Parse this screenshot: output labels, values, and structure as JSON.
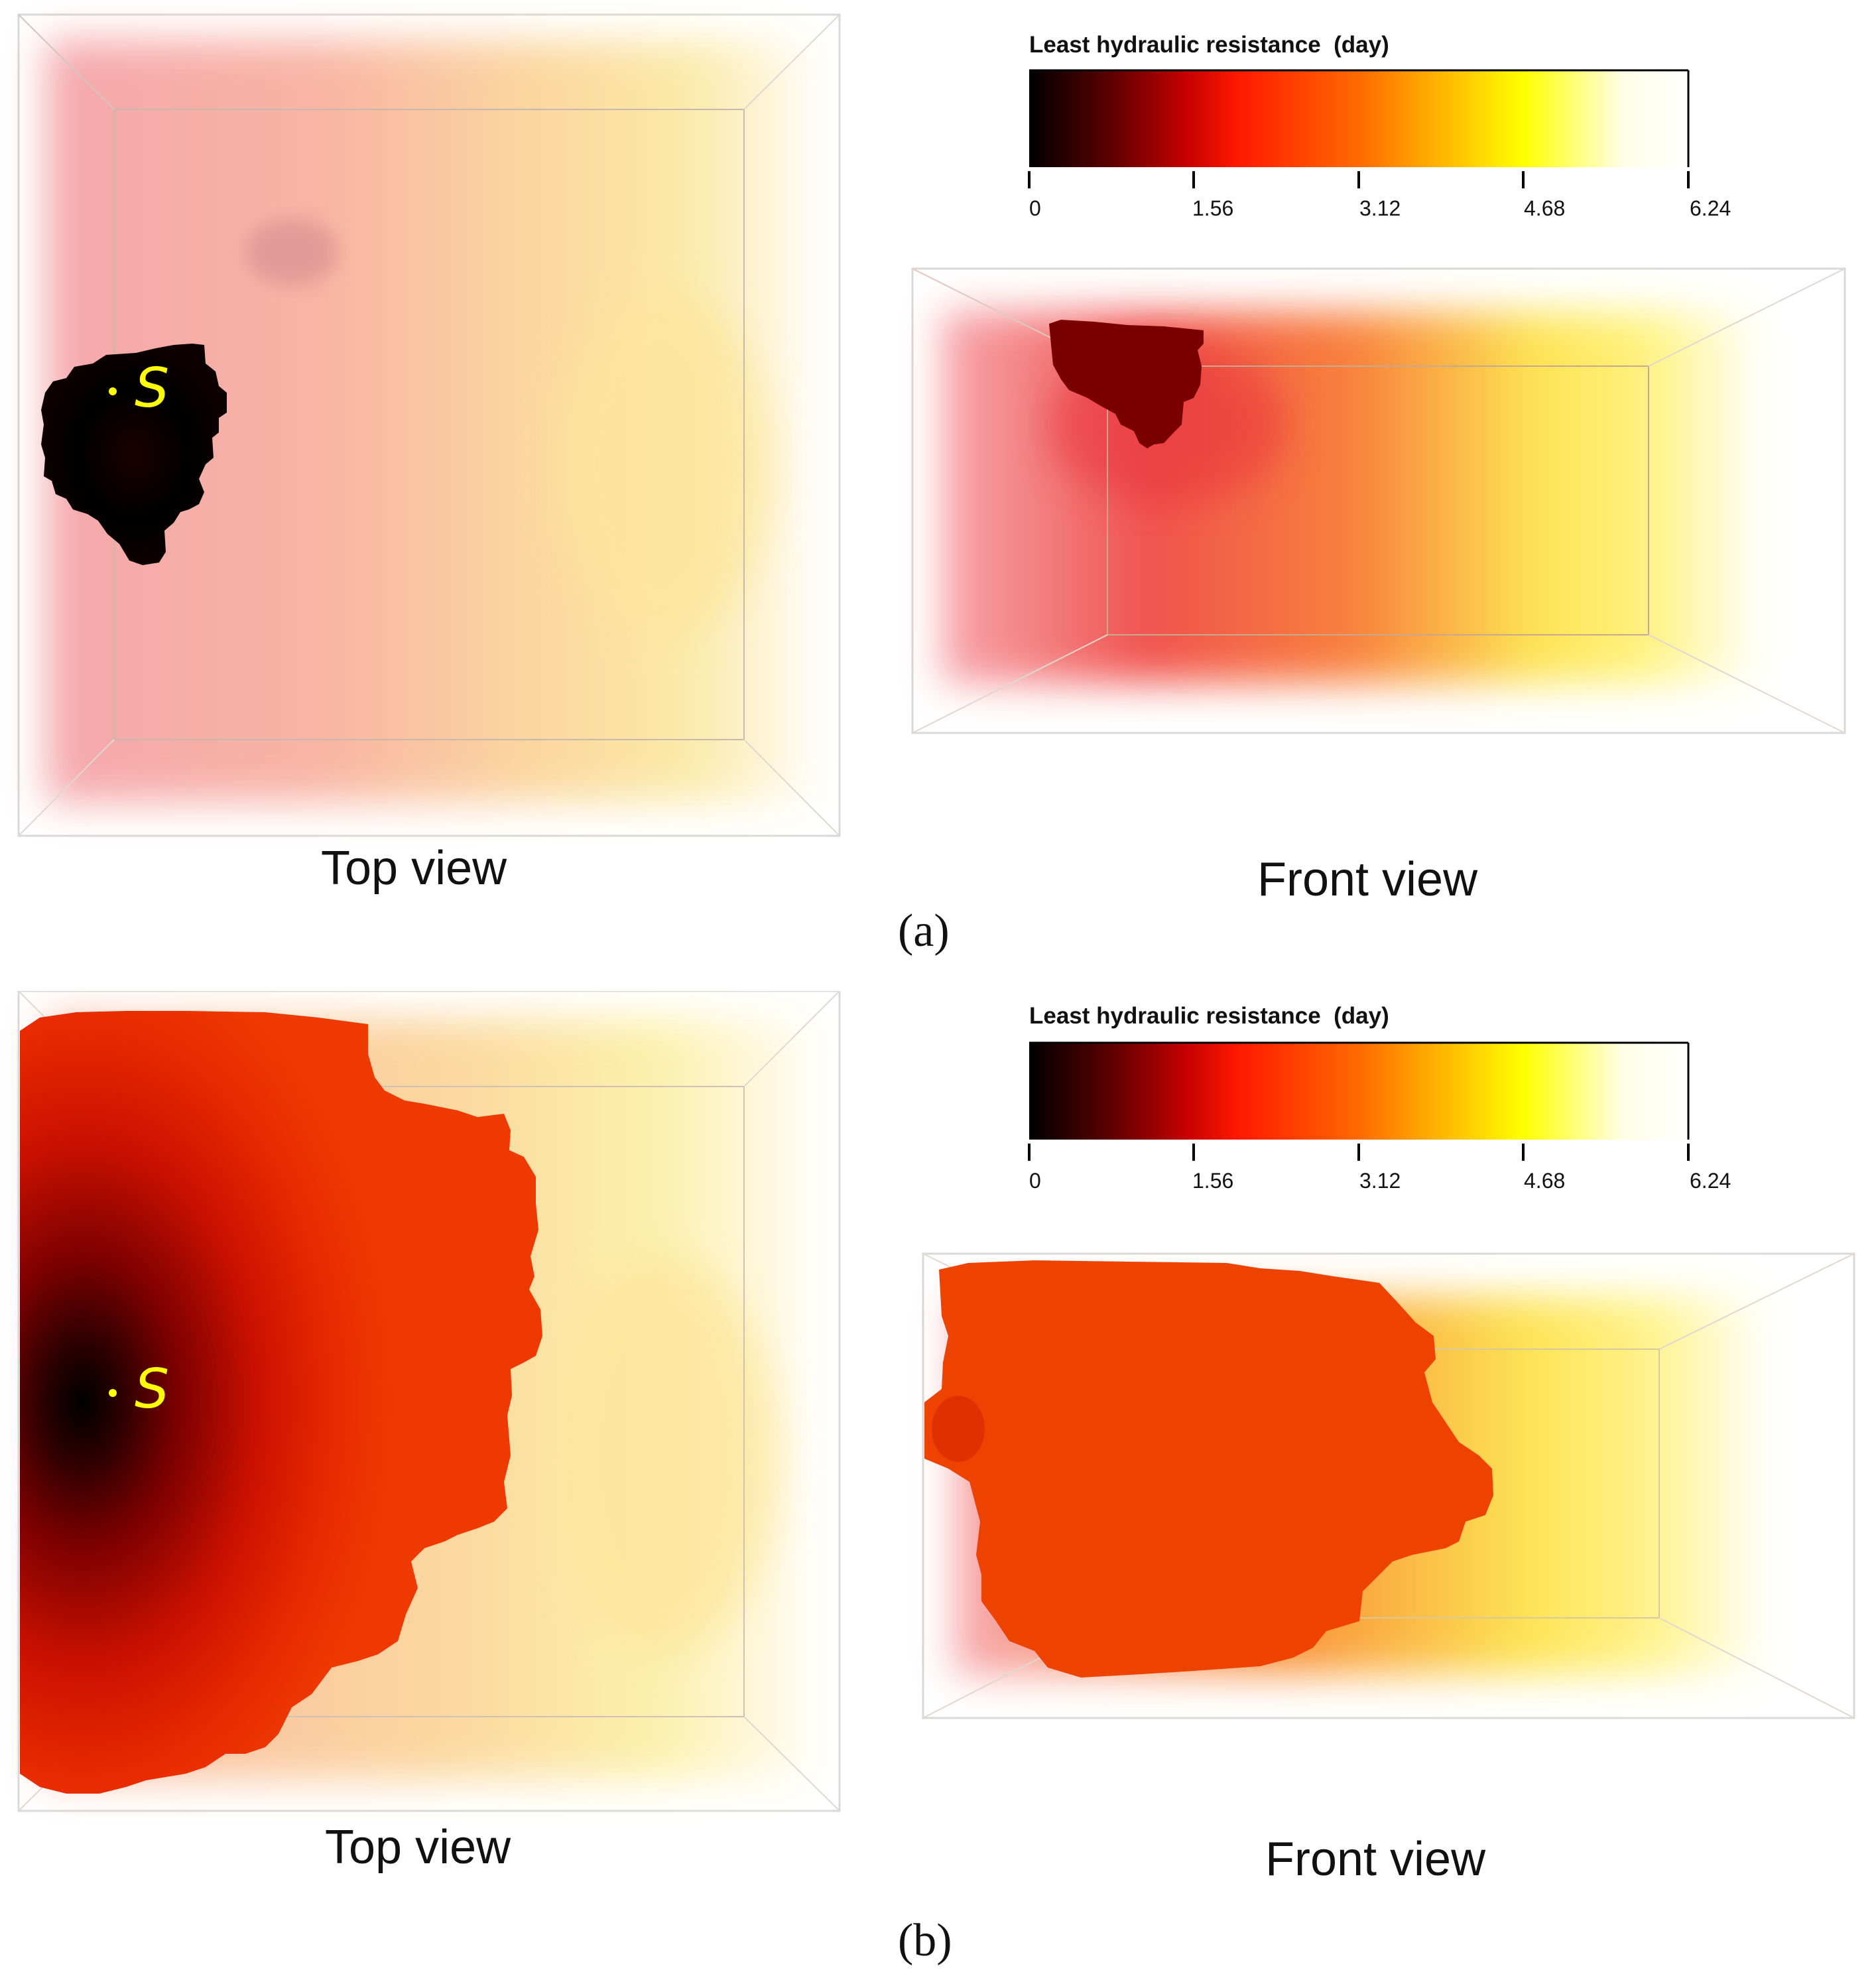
{
  "colorbar": {
    "title": "Least hydraulic resistance",
    "unit": "(day)",
    "ticks": [
      "0",
      "1.56",
      "3.12",
      "4.68",
      "6.24"
    ],
    "min": 0,
    "max": 6.24,
    "colors": [
      "#000000",
      "#5a0000",
      "#c80000",
      "#ff1a00",
      "#ff6a00",
      "#ffb300",
      "#ffff00",
      "#ffffe6",
      "#ffffff"
    ]
  },
  "source_marker": "S",
  "panels": [
    {
      "id": "a",
      "label": "(a)",
      "top_caption": "Top view",
      "front_caption": "Front view"
    },
    {
      "id": "b",
      "label": "(b)",
      "top_caption": "Top view",
      "front_caption": "Front view"
    }
  ]
}
